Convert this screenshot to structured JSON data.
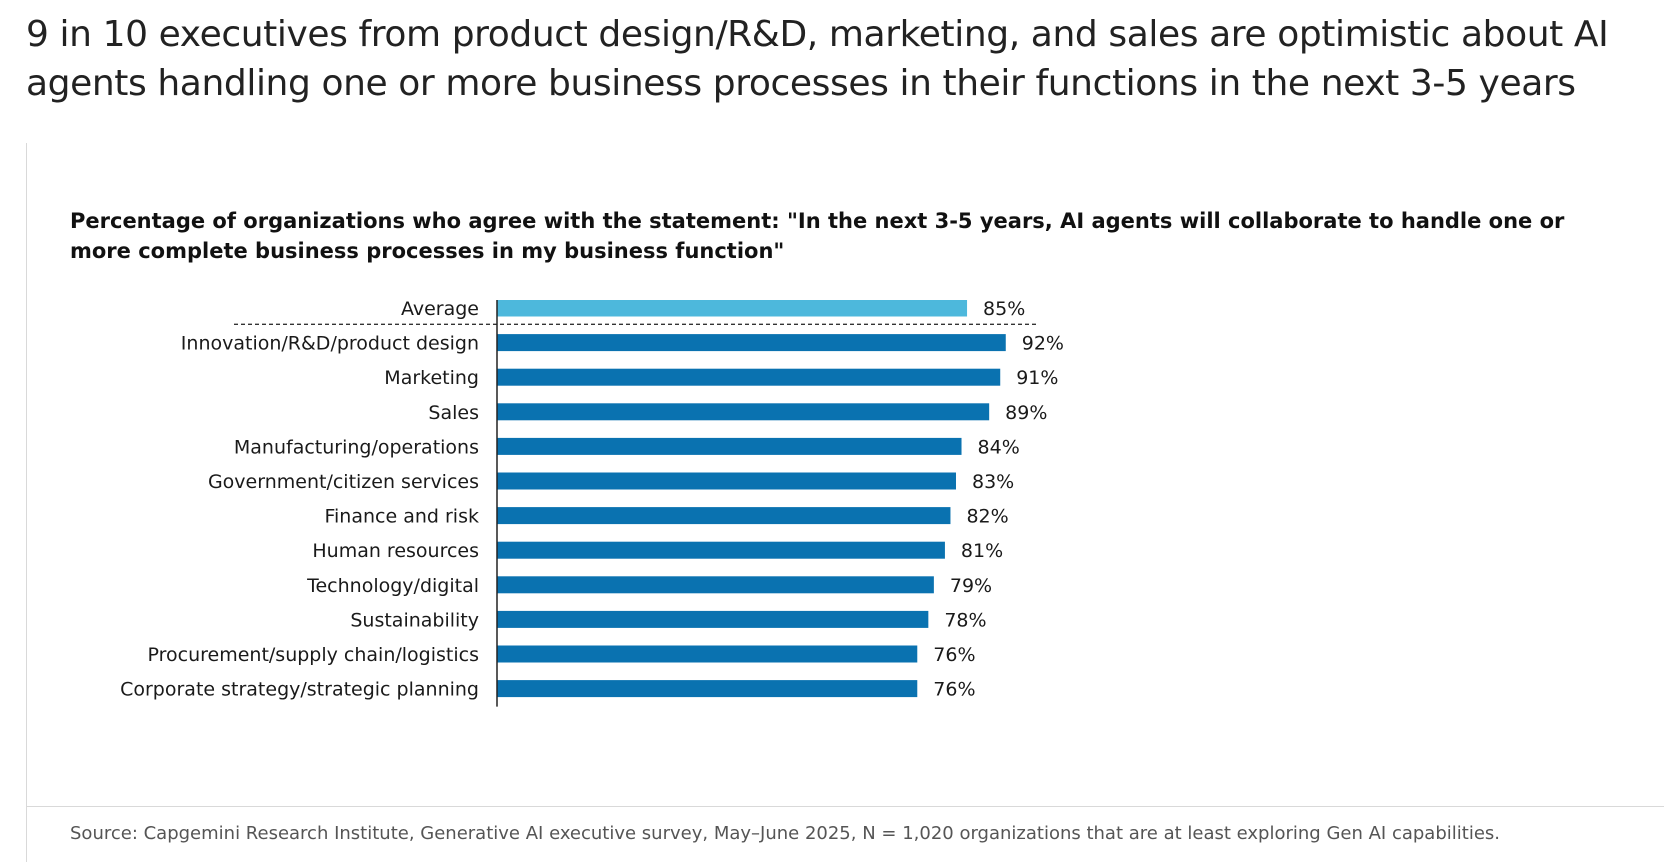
{
  "headline": "9 in 10 executives from product design/R&D, marketing, and sales are optimistic about AI agents handling one or more business processes in their functions in the next 3-5 years",
  "source": "Source: Capgemini Research Institute, Generative AI executive survey, May–June 2025, N = 1,020 organizations that are at least exploring Gen AI capabilities.",
  "colors": {
    "average_bar": "#4db8dc",
    "function_bar": "#0a72b0"
  },
  "chart_data": {
    "type": "bar",
    "orientation": "horizontal",
    "title": "Percentage of organizations who agree with the statement: \"In the next 3-5 years, AI agents will collaborate to handle one or more complete business processes in my business function\"",
    "xlabel": "",
    "ylabel": "",
    "unit": "%",
    "xlim": [
      0,
      100
    ],
    "grid": false,
    "legend": "none",
    "categories": [
      "Average",
      "Innovation/R&D/product design",
      "Marketing",
      "Sales",
      "Manufacturing/operations",
      "Government/citizen services",
      "Finance and risk",
      "Human resources",
      "Technology/digital",
      "Sustainability",
      "Procurement/supply chain/logistics",
      "Corporate strategy/strategic planning"
    ],
    "values": [
      85,
      92,
      91,
      89,
      84,
      83,
      82,
      81,
      79,
      78,
      76,
      76
    ],
    "data_labels": [
      "85%",
      "92%",
      "91%",
      "89%",
      "84%",
      "83%",
      "82%",
      "81%",
      "79%",
      "78%",
      "76%",
      "76%"
    ]
  }
}
